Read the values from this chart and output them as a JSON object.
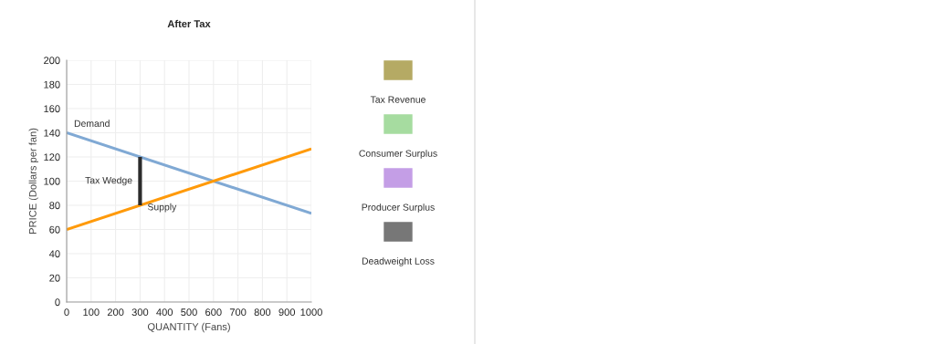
{
  "chart_data": {
    "type": "line",
    "title": "After Tax",
    "xlabel": "QUANTITY (Fans)",
    "ylabel": "PRICE (Dollars per fan)",
    "xlim": [
      0,
      1000
    ],
    "xticks": [
      0,
      100,
      200,
      300,
      400,
      500,
      600,
      700,
      800,
      900,
      1000
    ],
    "ylim": [
      0,
      200
    ],
    "yticks": [
      0,
      20,
      40,
      60,
      80,
      100,
      120,
      140,
      160,
      180,
      200
    ],
    "grid": true,
    "marker": "none",
    "series": [
      {
        "color": "#80a9d4",
        "x": [
          0,
          1000
        ],
        "values": [
          140,
          73.3
        ]
      },
      {
        "color": "#ff9a0a",
        "x": [
          0,
          1000
        ],
        "values": [
          60,
          126.7
        ]
      },
      {
        "color": "#2b2b2b",
        "x": [
          300,
          300
        ],
        "values": [
          80,
          120
        ]
      }
    ],
    "annotations": [
      "Demand",
      "Tax Wedge",
      {
        "text": "Supply",
        "x": 330,
        "y": 78
      },
      "Tax Revenue",
      "Consumer Surplus",
      "Producer Surplus",
      "Deadweight Loss"
    ]
  }
}
